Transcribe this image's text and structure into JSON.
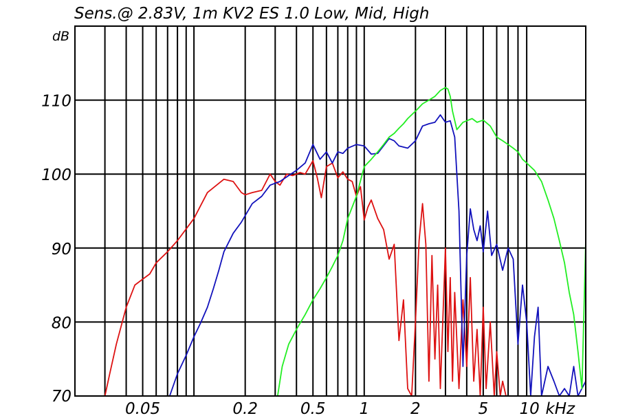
{
  "chart_data": {
    "type": "line",
    "title": "Sens.@ 2.83V, 1m KV2 ES 1.0 Low, Mid, High",
    "ylabel": "dB",
    "xunit": "kHz",
    "xscale": "log",
    "xlim": [
      0.02,
      20
    ],
    "ylim": [
      70,
      120
    ],
    "grid": true,
    "y_ticks": [
      {
        "value": 80,
        "label": "80"
      },
      {
        "value": 90,
        "label": "90"
      },
      {
        "value": 100,
        "label": "100"
      },
      {
        "value": 110,
        "label": "110"
      }
    ],
    "y_bottom_label": "70",
    "x_ticks": [
      {
        "value": 0.05,
        "label": "0.05"
      },
      {
        "value": 0.2,
        "label": "0.2"
      },
      {
        "value": 0.5,
        "label": "0.5"
      },
      {
        "value": 1,
        "label": "1"
      },
      {
        "value": 2,
        "label": "2"
      },
      {
        "value": 5,
        "label": "5"
      },
      {
        "value": 10,
        "label": "10"
      }
    ],
    "series": [
      {
        "color": "#dd1111",
        "x": [
          0.03,
          0.032,
          0.035,
          0.04,
          0.045,
          0.05,
          0.055,
          0.06,
          0.07,
          0.08,
          0.1,
          0.12,
          0.15,
          0.17,
          0.19,
          0.2,
          0.22,
          0.25,
          0.28,
          0.3,
          0.32,
          0.35,
          0.38,
          0.42,
          0.45,
          0.5,
          0.53,
          0.56,
          0.6,
          0.65,
          0.7,
          0.75,
          0.8,
          0.85,
          0.9,
          0.95,
          1.0,
          1.05,
          1.1,
          1.2,
          1.3,
          1.4,
          1.5,
          1.6,
          1.7,
          1.8,
          1.9,
          2.0,
          2.1,
          2.2,
          2.3,
          2.4,
          2.5,
          2.6,
          2.7,
          2.8,
          3.0,
          3.1,
          3.2,
          3.3,
          3.4,
          3.6,
          3.8,
          4.0,
          4.2,
          4.4,
          4.6,
          4.8,
          5.0,
          5.2,
          5.5,
          5.8,
          6.0,
          6.3,
          6.5,
          6.8,
          7.0,
          7.3,
          20.0
        ],
        "y": [
          70,
          73,
          77,
          82,
          85,
          85.8,
          86.5,
          88,
          89.5,
          91,
          94,
          97.5,
          99.3,
          99,
          97.5,
          97.2,
          97.5,
          97.8,
          100,
          99,
          98.5,
          100,
          99.8,
          100.2,
          100,
          101.8,
          99.5,
          96.8,
          101,
          101.5,
          99.5,
          100.3,
          99.3,
          99,
          97,
          98.3,
          93.8,
          95.5,
          96.5,
          94,
          92.5,
          88.5,
          90.5,
          77.5,
          83,
          71,
          70,
          80,
          91,
          96,
          90.5,
          72,
          89,
          75,
          85,
          71,
          90,
          76,
          86,
          72,
          84,
          71,
          83,
          74,
          86,
          72,
          79,
          70,
          82,
          71,
          80,
          70,
          76,
          70,
          72,
          70,
          70,
          70,
          70
        ]
      },
      {
        "color": "#1111bb",
        "x": [
          0.072,
          0.08,
          0.09,
          0.1,
          0.11,
          0.12,
          0.13,
          0.14,
          0.15,
          0.17,
          0.19,
          0.22,
          0.25,
          0.28,
          0.32,
          0.36,
          0.4,
          0.45,
          0.5,
          0.55,
          0.6,
          0.65,
          0.7,
          0.75,
          0.8,
          0.9,
          1.0,
          1.1,
          1.2,
          1.4,
          1.5,
          1.6,
          1.8,
          2.0,
          2.2,
          2.4,
          2.6,
          2.8,
          3.0,
          3.2,
          3.4,
          3.6,
          3.8,
          4.0,
          4.2,
          4.4,
          4.6,
          4.8,
          5.0,
          5.3,
          5.6,
          6.0,
          6.5,
          7.0,
          7.5,
          8.0,
          8.5,
          9.0,
          9.5,
          10.0,
          10.5,
          11.0,
          12.0,
          13.0,
          14.0,
          15.0,
          16.0,
          17.0,
          18.0,
          20.0
        ],
        "y": [
          70,
          73,
          75.5,
          78,
          80,
          82,
          84.5,
          87,
          89.5,
          92,
          93.5,
          96,
          97,
          98.5,
          99,
          99.8,
          100.5,
          101.5,
          104,
          102,
          103,
          101.5,
          103,
          102.8,
          103.5,
          104,
          103.8,
          102.7,
          102.8,
          104.8,
          104.5,
          103.8,
          103.5,
          104.5,
          106.5,
          106.8,
          107,
          108,
          107,
          107.2,
          105,
          95,
          74,
          89,
          95.3,
          92.5,
          91,
          93,
          89.5,
          95,
          89,
          90.5,
          87,
          90,
          88.5,
          77,
          85,
          80,
          70,
          78,
          82,
          70,
          74,
          72,
          70,
          71,
          70,
          74,
          70,
          72
        ]
      },
      {
        "color": "#22ee22",
        "x": [
          0.02,
          0.31,
          0.33,
          0.36,
          0.4,
          0.45,
          0.5,
          0.55,
          0.6,
          0.65,
          0.7,
          0.75,
          0.8,
          0.9,
          1.0,
          1.1,
          1.2,
          1.3,
          1.4,
          1.5,
          1.6,
          1.7,
          1.8,
          2.0,
          2.2,
          2.4,
          2.6,
          2.8,
          3.0,
          3.1,
          3.2,
          3.3,
          3.5,
          3.8,
          4.0,
          4.3,
          4.6,
          5.0,
          5.5,
          6.0,
          6.5,
          7.0,
          7.5,
          8.0,
          8.5,
          9.0,
          10.0,
          11.0,
          12.0,
          13.0,
          14.0,
          15.0,
          16.0,
          17.0,
          18.0,
          19.0,
          20.0
        ],
        "y": [
          70,
          70,
          74,
          77,
          79,
          81,
          83,
          84.5,
          86,
          87.5,
          89,
          91,
          94,
          97,
          101,
          102,
          103,
          104,
          105,
          105.5,
          106.2,
          106.8,
          107.5,
          108.5,
          109.5,
          110,
          110.5,
          111.3,
          111.7,
          111.5,
          110.5,
          108.5,
          106,
          107,
          107.2,
          107.5,
          107,
          107.3,
          106.5,
          105,
          104.5,
          104,
          103.5,
          103,
          102,
          101.5,
          100.5,
          99,
          96.5,
          94,
          91,
          88,
          84,
          81,
          76,
          71,
          91
        ]
      }
    ]
  }
}
